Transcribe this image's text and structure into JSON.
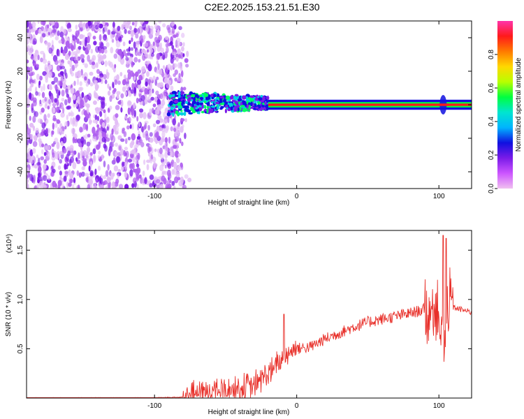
{
  "title": "C2E2.2025.153.21.51.E30",
  "chart_data": [
    {
      "type": "heatmap",
      "xlabel": "Height of straight line (km)",
      "ylabel": "Frequency (Hz)",
      "xlim": [
        -190,
        123
      ],
      "ylim": [
        -50,
        50
      ],
      "xticks": [
        -100,
        0,
        100
      ],
      "xtick_labels": [
        "-100",
        "0",
        "100"
      ],
      "yticks": [
        -40,
        -20,
        0,
        20,
        40
      ],
      "ytick_labels": [
        "-40",
        "-20",
        "0",
        "20",
        "40"
      ],
      "colorbar": {
        "label": "Normalized spectral amplitude",
        "range": [
          0,
          1
        ],
        "ticks": [
          0.0,
          0.2,
          0.4,
          0.6,
          0.8
        ],
        "tick_labels": [
          "0.0",
          "0.2",
          "0.4",
          "0.6",
          "0.8"
        ],
        "colormap": [
          "#f0c0f0",
          "#cc55ff",
          "#7a1be8",
          "#1010e0",
          "#00b4ff",
          "#00e5d0",
          "#00ff40",
          "#b8ff00",
          "#ffd800",
          "#ff7a00",
          "#ff1a1a",
          "#ff33aa"
        ]
      },
      "regions": [
        {
          "x_range": [
            -190,
            -85
          ],
          "freq_range": [
            -50,
            50
          ],
          "amplitude": 0.1,
          "description_key": "noise"
        },
        {
          "x_range": [
            -90,
            -20
          ],
          "freq_range": [
            -6,
            8
          ],
          "amplitude": 0.4
        },
        {
          "x_range": [
            -20,
            123
          ],
          "freq_range": [
            -1,
            1
          ],
          "amplitude": 0.95
        }
      ]
    },
    {
      "type": "line",
      "xlabel": "Height of straight line (km)",
      "ylabel": "SNR (10 * v/v)",
      "y_multiplier": "(x10⁴)",
      "xlim": [
        -190,
        123
      ],
      "ylim": [
        0,
        1.7
      ],
      "xticks": [
        -100,
        0,
        100
      ],
      "xtick_labels": [
        "-100",
        "0",
        "100"
      ],
      "yticks": [
        0.5,
        1.0,
        1.5
      ],
      "ytick_labels": [
        "0.5",
        "1.0",
        "1.5"
      ],
      "color": "#e8302a",
      "series": [
        {
          "x": [
            -190,
            -150,
            -100,
            -80,
            -70,
            -60,
            -50,
            -40,
            -30,
            -25,
            -20,
            -15,
            -10,
            -5,
            0,
            10,
            20,
            30,
            40,
            50,
            60,
            70,
            80,
            90,
            95,
            100,
            102,
            104,
            106,
            110,
            115,
            120,
            123
          ],
          "values": [
            0.0,
            0.0,
            0.0,
            0.01,
            0.05,
            0.07,
            0.08,
            0.1,
            0.12,
            0.2,
            0.25,
            0.3,
            0.4,
            0.48,
            0.5,
            0.52,
            0.6,
            0.66,
            0.72,
            0.77,
            0.8,
            0.83,
            0.86,
            0.9,
            0.92,
            0.95,
            0.6,
            0.5,
            0.9,
            0.92,
            0.9,
            0.88,
            0.87
          ]
        }
      ]
    }
  ]
}
